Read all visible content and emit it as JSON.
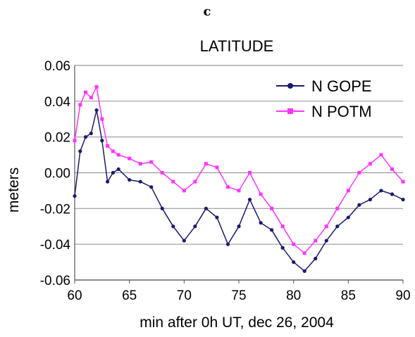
{
  "panel_letter": "c",
  "chart_data": {
    "type": "line",
    "title": "LATITUDE",
    "xlabel": "min after 0h UT, dec 26, 2004",
    "ylabel": "meters",
    "xlim": [
      60,
      90
    ],
    "ylim": [
      -0.06,
      0.06
    ],
    "x_ticks": [
      60,
      65,
      70,
      75,
      80,
      85,
      90
    ],
    "x_tick_labels": [
      "60",
      "65",
      "70",
      "75",
      "80",
      "85",
      "90"
    ],
    "y_ticks": [
      0.06,
      0.04,
      0.02,
      0.0,
      -0.02,
      -0.04,
      -0.06
    ],
    "y_tick_labels": [
      "0.06",
      "0.04",
      "0.02",
      "0.00",
      "-0.02",
      "-0.04",
      "-0.06"
    ],
    "grid": "horizontal",
    "legend_position": "top-right",
    "series": [
      {
        "name": "N GOPE",
        "color": "#1a1a6e",
        "marker": "circle",
        "x": [
          60,
          60.5,
          61,
          61.5,
          62,
          62.5,
          63,
          63.5,
          64,
          65,
          66,
          67,
          68,
          69,
          70,
          71,
          72,
          73,
          74,
          75,
          76,
          77,
          78,
          79,
          80,
          81,
          82,
          83,
          84,
          85,
          86,
          87,
          88,
          89,
          90
        ],
        "values": [
          -0.013,
          0.012,
          0.02,
          0.022,
          0.035,
          0.018,
          -0.005,
          0.0,
          0.002,
          -0.004,
          -0.005,
          -0.008,
          -0.02,
          -0.03,
          -0.038,
          -0.03,
          -0.02,
          -0.025,
          -0.04,
          -0.03,
          -0.015,
          -0.028,
          -0.032,
          -0.042,
          -0.05,
          -0.055,
          -0.048,
          -0.038,
          -0.03,
          -0.025,
          -0.018,
          -0.015,
          -0.01,
          -0.012,
          -0.015
        ]
      },
      {
        "name": "N POTM",
        "color": "#ff33ff",
        "marker": "square",
        "x": [
          60,
          60.5,
          61,
          61.5,
          62,
          62.5,
          63,
          63.5,
          64,
          65,
          66,
          67,
          68,
          69,
          70,
          71,
          72,
          73,
          74,
          75,
          76,
          77,
          78,
          79,
          80,
          81,
          82,
          83,
          84,
          85,
          86,
          87,
          88,
          89,
          90
        ],
        "values": [
          0.018,
          0.038,
          0.045,
          0.042,
          0.048,
          0.03,
          0.015,
          0.012,
          0.01,
          0.008,
          0.005,
          0.006,
          0.0,
          -0.005,
          -0.01,
          -0.005,
          0.005,
          0.003,
          -0.008,
          -0.01,
          0.0,
          -0.012,
          -0.02,
          -0.03,
          -0.04,
          -0.045,
          -0.038,
          -0.03,
          -0.02,
          -0.01,
          0.0,
          0.005,
          0.01,
          0.002,
          -0.005
        ]
      }
    ]
  }
}
